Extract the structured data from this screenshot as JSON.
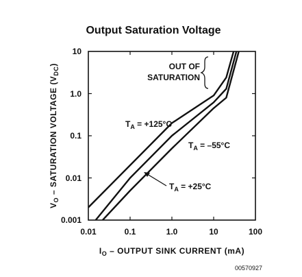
{
  "chart_data": {
    "type": "line",
    "title": "Output Saturation Voltage",
    "xlabel": "I",
    "xlabel_sub": "O",
    "xlabel_rest": " – OUTPUT SINK CURRENT (mA)",
    "ylabel": "V",
    "ylabel_sub": "O",
    "ylabel_mid": " – SATURATION VOLTAGE (V",
    "ylabel_sub2": "DC",
    "ylabel_end": ")",
    "xscale": "log",
    "yscale": "log",
    "xlim": [
      0.01,
      100
    ],
    "ylim": [
      0.001,
      10
    ],
    "x_ticks": [
      "0.01",
      "0.1",
      "1.0",
      "10",
      "100"
    ],
    "y_ticks": [
      "0.001",
      "0.01",
      "0.1",
      "1.0",
      "10"
    ],
    "grid": false,
    "series": [
      {
        "name": "T_A = +125°C",
        "label_main": "T",
        "label_sub": "A",
        "label_rest": " = +125°C",
        "x": [
          0.01,
          0.1,
          1.0,
          10,
          20,
          30
        ],
        "y": [
          0.002,
          0.02,
          0.2,
          0.9,
          2.4,
          10
        ]
      },
      {
        "name": "T_A = +25°C",
        "label_main": "T",
        "label_sub": "A",
        "label_rest": " = +25°C",
        "x": [
          0.015,
          0.1,
          1.0,
          10,
          20,
          35
        ],
        "y": [
          0.001,
          0.01,
          0.1,
          0.62,
          1.3,
          10
        ]
      },
      {
        "name": "T_A = –55°C",
        "label_main": "T",
        "label_sub": "A",
        "label_rest": " = –55°C",
        "x": [
          0.022,
          0.1,
          1.0,
          10,
          20,
          40
        ],
        "y": [
          0.001,
          0.005,
          0.05,
          0.45,
          0.8,
          10
        ]
      }
    ],
    "annotations": [
      {
        "line1": "OUT OF",
        "line2": "SATURATION"
      }
    ],
    "figure_code": "00570927"
  }
}
